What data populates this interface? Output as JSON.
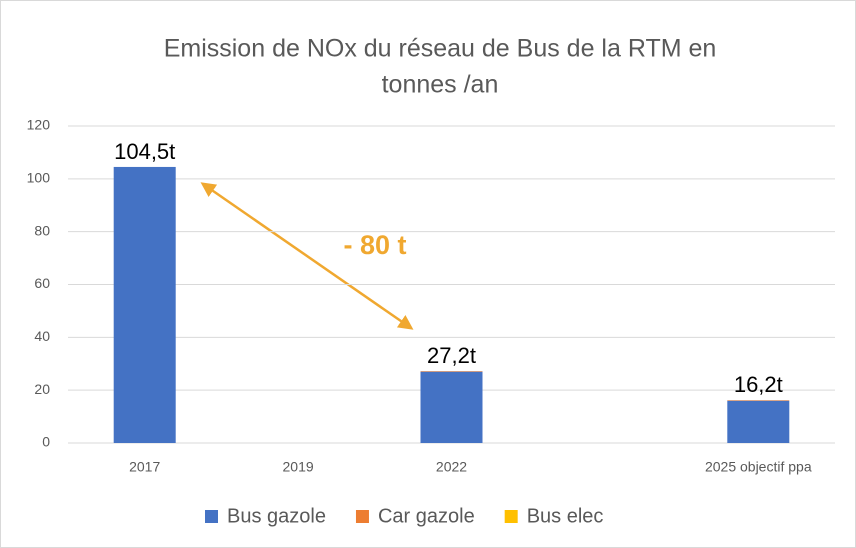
{
  "chart_data": {
    "type": "stacked_bar",
    "title_lines": [
      "Emission de NOx du réseau de Bus de la RTM en",
      "tonnes /an"
    ],
    "categories": [
      "2017",
      "2019",
      "2022",
      null,
      "2025 objectif ppa"
    ],
    "series": [
      {
        "name": "Bus gazole",
        "color": "#4472c4",
        "values": [
          104.5,
          null,
          27,
          null,
          16
        ]
      },
      {
        "name": "Car gazole",
        "color": "#ed7d31",
        "values": [
          0,
          null,
          0.2,
          null,
          0.2
        ]
      },
      {
        "name": "Bus elec",
        "color": "#ffc000",
        "values": [
          0,
          null,
          0,
          null,
          0
        ]
      }
    ],
    "totals": [
      104.5,
      null,
      27.2,
      null,
      16.2
    ],
    "total_labels": [
      "104,5t",
      null,
      "27,2t",
      null,
      "16,2t"
    ],
    "annotation": "-   80 t",
    "annotation_color": "#f0a830",
    "ylim": [
      0,
      120
    ],
    "yticks": [
      0,
      20,
      40,
      60,
      80,
      100,
      120
    ],
    "grid": true,
    "legend": "bottom"
  }
}
